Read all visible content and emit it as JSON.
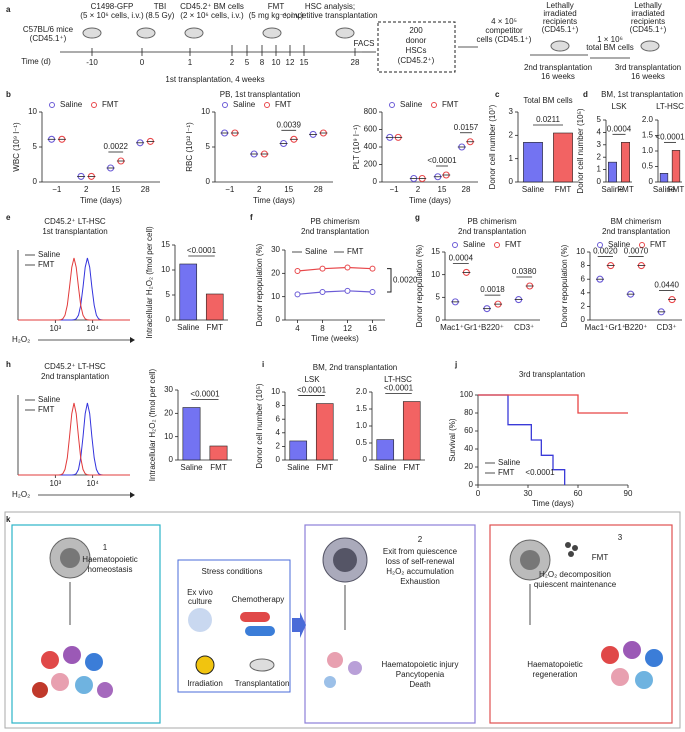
{
  "panel_a": {
    "label": "a",
    "c1498": "C1498-GFP",
    "c1498_dose": "(5 × 10⁶ cells, i.v.)",
    "mice": "C57BL/6 mice",
    "mice_type": "(CD45.1⁺)",
    "tbi": "TBI",
    "tbi_dose": "(8.5 Gy)",
    "bm": "CD45.2⁺ BM cells",
    "bm_dose": "(2 × 10⁶ cells, i.v.)",
    "fmt": "FMT",
    "fmt_dose": "(5 mg kg⁻¹, i.v.)",
    "time_label": "Time (d)",
    "timepoints": [
      -10,
      0,
      1,
      2,
      5,
      8,
      10,
      12,
      15,
      28
    ],
    "phase": "1st transplantation, 4 weeks",
    "analysis": [
      "HSC analysis;",
      "competitive transplantation"
    ],
    "facs": "FACS",
    "hsc_box": [
      "200",
      "donor",
      "HSCs",
      "(CD45.2⁺)"
    ],
    "competitor": [
      "4 × 10⁵",
      "competitor",
      "cells (CD45.1⁺)"
    ],
    "recipients_2": [
      "Lethally",
      "irradiated",
      "recipients",
      "(CD45.1⁺)"
    ],
    "second": [
      "2nd transplantation",
      "16 weeks"
    ],
    "total_bm": [
      "1 × 10⁶",
      "total BM cells"
    ],
    "recipients_3": [
      "Lethally",
      "irradiated",
      "recipients",
      "(CD45.1⁺)"
    ],
    "third": [
      "3rd transplantation",
      "16 weeks"
    ]
  },
  "chart_data": [
    {
      "type": "dotplot",
      "panel": "b",
      "title": "PB, 1st transplantation",
      "ylabel": "WBC (10⁹ l⁻¹)",
      "xlabel": "Time (days)",
      "categories": [
        "−1",
        "2",
        "15",
        "28"
      ],
      "series": [
        {
          "name": "Saline",
          "color": "#6b5bd6",
          "values": [
            6.1,
            0.8,
            2.0,
            5.6
          ]
        },
        {
          "name": "FMT",
          "color": "#e8474a",
          "values": [
            6.1,
            0.8,
            3.0,
            5.8
          ]
        }
      ],
      "ylim": [
        0,
        10
      ],
      "yticks": [
        0,
        5,
        10
      ],
      "annotations": [
        "0.0022"
      ]
    },
    {
      "type": "dotplot",
      "ylabel": "RBC (10¹² l⁻¹)",
      "xlabel": "Time (days)",
      "categories": [
        "−1",
        "2",
        "15",
        "28"
      ],
      "series": [
        {
          "name": "Saline",
          "color": "#6b5bd6",
          "values": [
            7.0,
            4.0,
            5.5,
            6.8
          ]
        },
        {
          "name": "FMT",
          "color": "#e8474a",
          "values": [
            7.0,
            4.0,
            6.1,
            7.0
          ]
        }
      ],
      "ylim": [
        0,
        10
      ],
      "yticks": [
        0,
        5,
        10
      ],
      "annotations": [
        "0.0039"
      ]
    },
    {
      "type": "dotplot",
      "ylabel": "PLT (10⁹ l⁻¹)",
      "xlabel": "Time (days)",
      "categories": [
        "−1",
        "2",
        "15",
        "28"
      ],
      "series": [
        {
          "name": "Saline",
          "color": "#6b5bd6",
          "values": [
            510,
            40,
            60,
            400
          ]
        },
        {
          "name": "FMT",
          "color": "#e8474a",
          "values": [
            510,
            40,
            80,
            460
          ]
        }
      ],
      "ylim": [
        0,
        800
      ],
      "yticks": [
        0,
        200,
        400,
        600,
        800
      ],
      "annotations": [
        "<0.0001",
        "0.0157"
      ]
    },
    {
      "type": "bar",
      "panel": "c",
      "title": "Total BM cells",
      "ylabel": "Donor cell number (10⁷)",
      "categories": [
        "Saline",
        "FMT"
      ],
      "values": [
        1.7,
        2.1
      ],
      "colors": [
        "#5a5af0",
        "#f04848"
      ],
      "ylim": [
        0,
        3
      ],
      "yticks": [
        0,
        1,
        2,
        3
      ],
      "annotations": [
        "0.0211"
      ]
    },
    {
      "type": "bar",
      "panel": "d",
      "suptitle": "BM, 1st transplantation",
      "title": "LSK",
      "ylabel": "Donor cell number (10⁵)",
      "categories": [
        "Saline",
        "FMT"
      ],
      "values": [
        1.6,
        3.2
      ],
      "colors": [
        "#5a5af0",
        "#f04848"
      ],
      "ylim": [
        0,
        5
      ],
      "yticks": [
        0,
        1,
        2,
        3,
        4,
        5
      ],
      "annotations": [
        "0.0004"
      ]
    },
    {
      "type": "bar",
      "title": "LT-HSC",
      "categories": [
        "Saline",
        "FMT"
      ],
      "values": [
        0.28,
        1.02
      ],
      "colors": [
        "#5a5af0",
        "#f04848"
      ],
      "ylim": [
        0,
        2
      ],
      "yticks": [
        0,
        0.5,
        {
          "value": 1,
          "label": "1.0"
        },
        1.5,
        {
          "value": 2,
          "label": "2.0"
        }
      ],
      "annotations": [
        "<0.0001"
      ]
    },
    {
      "type": "flow",
      "panel": "e",
      "title": "CD45.2⁺ LT-HSC",
      "subtitle": "1st transplantation",
      "xlabel": "H₂O₂",
      "series": [
        {
          "name": "Saline",
          "color": "#3333dd"
        },
        {
          "name": "FMT",
          "color": "#e23b3b"
        }
      ],
      "xlog": true,
      "xlim": [
        100,
        100000
      ],
      "xticks": [
        {
          "value": 1000,
          "label": "10³"
        },
        {
          "value": 10000,
          "label": "10⁴"
        }
      ]
    },
    {
      "type": "bar",
      "ylabel": "Intracellular H₂O₂ (fmol per cell)",
      "categories": [
        "Saline",
        "FMT"
      ],
      "values": [
        11.2,
        5.2
      ],
      "colors": [
        "#5a5af0",
        "#f04848"
      ],
      "ylim": [
        0,
        15
      ],
      "yticks": [
        0,
        5,
        10,
        15
      ],
      "annotations": [
        "<0.0001"
      ]
    },
    {
      "type": "line",
      "panel": "f",
      "title": "PB chimerism",
      "subtitle": "2nd transplantation",
      "ylabel": "Donor repopulation (%)",
      "xlabel": "Time (weeks)",
      "x": [
        4,
        8,
        12,
        16
      ],
      "xlim": [
        2,
        18
      ],
      "xticks": [
        4,
        8,
        12,
        16
      ],
      "ylim": [
        0,
        30
      ],
      "yticks": [
        0,
        10,
        20,
        30
      ],
      "series": [
        {
          "name": "Saline",
          "color": "#6b5bd6",
          "values": [
            11,
            12,
            12.5,
            12
          ]
        },
        {
          "name": "FMT",
          "color": "#e8474a",
          "values": [
            21,
            22,
            22.5,
            22
          ]
        }
      ],
      "annotations": [
        "0.0020"
      ]
    },
    {
      "type": "dotplot",
      "panel": "g",
      "title": "PB chimerism",
      "subtitle": "2nd transplantation",
      "ylabel": "Donor repopulation (%)",
      "categories": [
        "Mac1⁺Gr1⁺",
        "B220⁺",
        "CD3⁺"
      ],
      "series": [
        {
          "name": "Saline",
          "color": "#6b5bd6",
          "values": [
            4,
            2.5,
            4.5
          ]
        },
        {
          "name": "FMT",
          "color": "#e8474a",
          "values": [
            10.5,
            3.5,
            7.5
          ]
        }
      ],
      "ylim": [
        0,
        15
      ],
      "yticks": [
        0,
        5,
        10,
        15
      ],
      "annotations": [
        "0.0004",
        "0.0018",
        "0.0380"
      ]
    },
    {
      "type": "dotplot",
      "title": "BM chimerism",
      "subtitle": "2nd transplantation",
      "ylabel": "Donor repopulation (%)",
      "categories": [
        "Mac1⁺Gr1⁺",
        "B220⁺",
        "CD3⁺"
      ],
      "series": [
        {
          "name": "Saline",
          "color": "#6b5bd6",
          "values": [
            6,
            3.8,
            1.2
          ]
        },
        {
          "name": "FMT",
          "color": "#e8474a",
          "values": [
            8,
            8,
            3
          ]
        }
      ],
      "ylim": [
        0,
        10
      ],
      "yticks": [
        0,
        2,
        4,
        6,
        8,
        10
      ],
      "annotations": [
        "0.0020",
        "0.0070",
        "0.0440"
      ]
    },
    {
      "type": "flow",
      "panel": "h",
      "title": "CD45.2⁺ LT-HSC",
      "subtitle": "2nd transplantation",
      "xlabel": "H₂O₂",
      "series": [
        {
          "name": "Saline",
          "color": "#3333dd"
        },
        {
          "name": "FMT",
          "color": "#e23b3b"
        }
      ],
      "xlog": true,
      "xlim": [
        100,
        100000
      ],
      "xticks": [
        {
          "value": 1000,
          "label": "10³"
        },
        {
          "value": 10000,
          "label": "10⁴"
        }
      ]
    },
    {
      "type": "bar",
      "ylabel": "Intracellular H₂O₂ (fmol per cell)",
      "categories": [
        "Saline",
        "FMT"
      ],
      "values": [
        22.5,
        6
      ],
      "colors": [
        "#5a5af0",
        "#f04848"
      ],
      "ylim": [
        0,
        30
      ],
      "yticks": [
        0,
        10,
        20,
        30
      ],
      "annotations": [
        "<0.0001"
      ]
    },
    {
      "type": "bar",
      "panel": "i",
      "suptitle": "BM, 2nd transplantation",
      "title": "LSK",
      "ylabel": "Donor cell number (10⁵)",
      "categories": [
        "Saline",
        "FMT"
      ],
      "values": [
        2.8,
        8.3
      ],
      "colors": [
        "#5a5af0",
        "#f04848"
      ],
      "ylim": [
        0,
        10
      ],
      "yticks": [
        0,
        2,
        4,
        6,
        8,
        10
      ],
      "annotations": [
        "<0.0001"
      ]
    },
    {
      "type": "bar",
      "title": "LT-HSC",
      "categories": [
        "Saline",
        "FMT"
      ],
      "values": [
        0.6,
        1.72
      ],
      "colors": [
        "#5a5af0",
        "#f04848"
      ],
      "ylim": [
        0,
        2
      ],
      "yticks": [
        0,
        0.5,
        {
          "value": 1,
          "label": "1.0"
        },
        1.5,
        {
          "value": 2,
          "label": "2.0"
        }
      ],
      "annotations": [
        "<0.0001"
      ]
    },
    {
      "type": "step",
      "panel": "j",
      "title": "3rd transplantation",
      "ylabel": "Survival (%)",
      "xlabel": "Time (days)",
      "xlim": [
        0,
        90
      ],
      "xticks": [
        0,
        30,
        60,
        90
      ],
      "ylim": [
        0,
        100
      ],
      "yticks": [
        0,
        20,
        40,
        60,
        80,
        100
      ],
      "series": [
        {
          "name": "Saline",
          "color": "#3a3ad8",
          "x": [
            0,
            18,
            32,
            38,
            45,
            52
          ],
          "values": [
            100,
            67,
            50,
            33,
            17,
            0
          ]
        },
        {
          "name": "FMT",
          "color": "#e84545",
          "x": [
            0,
            60,
            90
          ],
          "values": [
            100,
            80,
            80
          ]
        }
      ],
      "annotations": [
        "<0.0001"
      ]
    }
  ],
  "panel_k": {
    "label": "k",
    "s1": {
      "num": "1",
      "text": [
        "Haematopoietic",
        "homeostasis"
      ]
    },
    "stress": {
      "title": "Stress conditions",
      "items": [
        "Ex vivo",
        "culture",
        "Chemotherapy",
        "Irradiation",
        "Transplantation"
      ]
    },
    "s2": {
      "num": "2",
      "text": [
        "Exit from quiescence",
        "loss of self-renewal",
        "H₂O₂ accumulation",
        "Exhaustion"
      ],
      "outcome": [
        "Haematopoietic injury",
        "Pancytopenia",
        "Death"
      ]
    },
    "s3": {
      "num": "3",
      "fmt": "FMT",
      "text": [
        "H₂O₂ decomposition",
        "quiescent maintenance"
      ],
      "outcome": [
        "Haematopoietic",
        "regeneration"
      ]
    }
  }
}
